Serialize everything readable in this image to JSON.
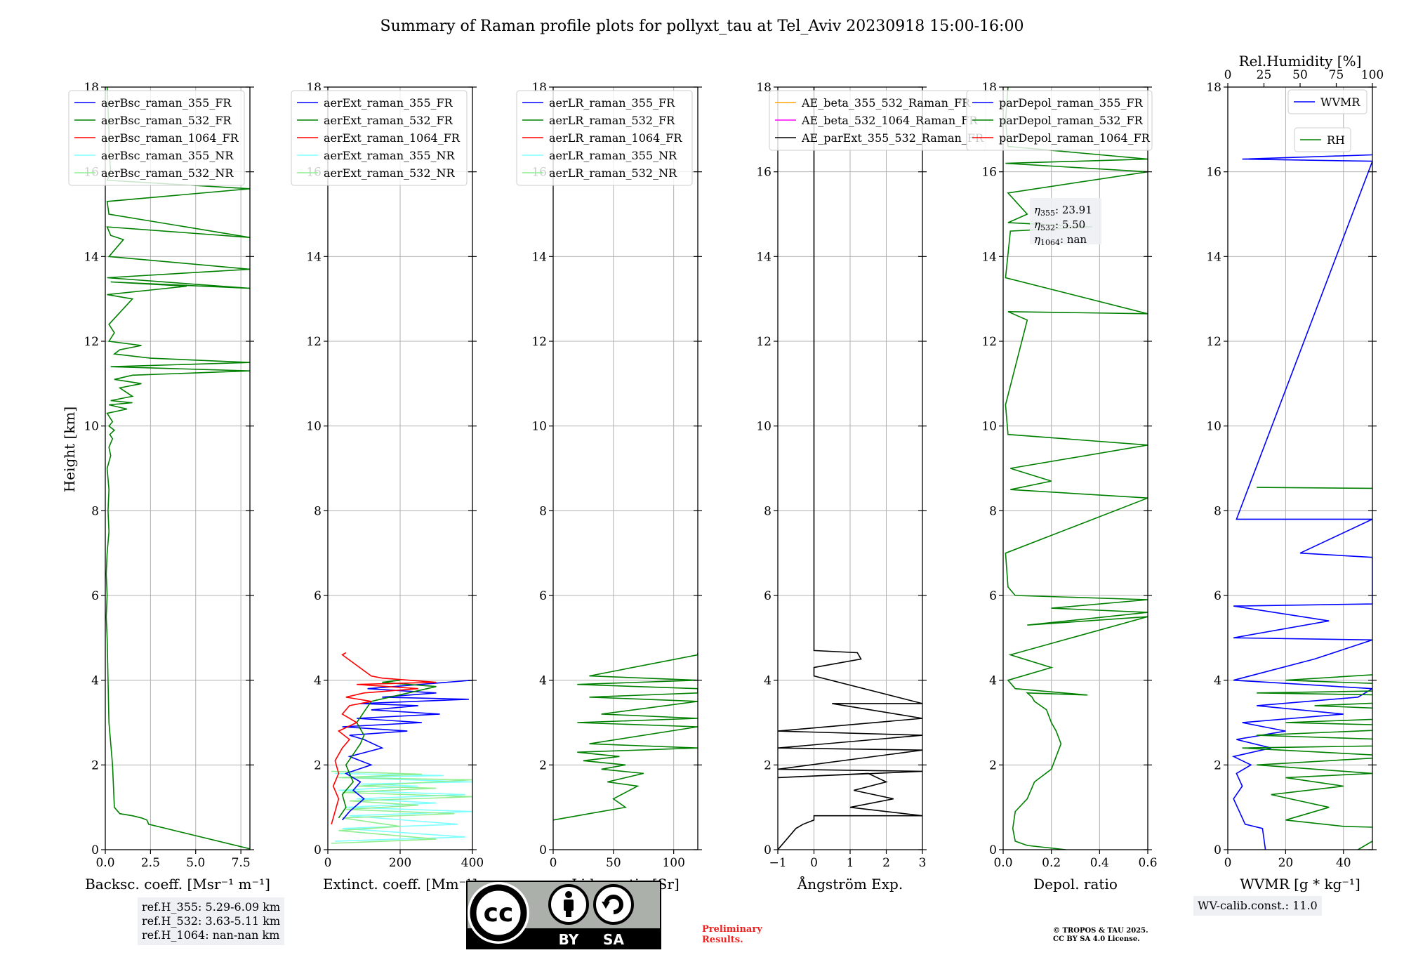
{
  "figure_title": "Summary of Raman profile plots for pollyxt_tau at Tel_Aviv 20230918 15:00-16:00",
  "shared_ylabel": "Height [km]",
  "ylim": [
    0,
    18
  ],
  "yticks": [
    0,
    2,
    4,
    6,
    8,
    10,
    12,
    14,
    16,
    18
  ],
  "colors": {
    "blue": "#0000ff",
    "green": "#008000",
    "red": "#ff0000",
    "cyan": "#80ffff",
    "lightgreen": "#90ee90",
    "orange": "#ffa500",
    "magenta": "#ff00ff",
    "black": "#000000",
    "grid": "#b0b0b0",
    "prelim": "#ee2222",
    "box": "#eef0f3"
  },
  "chart_data": [
    {
      "type": "line",
      "panel": "backscatter",
      "xlabel": "Backsc. coeff. [Msr⁻¹ m⁻¹]",
      "xlim": [
        0,
        8
      ],
      "xticks": [
        0,
        2.5,
        5,
        7.5
      ],
      "xtick_labels": [
        "0.0",
        "2.5",
        "5.0",
        "7.5"
      ],
      "legend": [
        {
          "name": "aerBsc_raman_355_FR",
          "color": "blue"
        },
        {
          "name": "aerBsc_raman_532_FR",
          "color": "green"
        },
        {
          "name": "aerBsc_raman_1064_FR",
          "color": "red"
        },
        {
          "name": "aerBsc_raman_355_NR",
          "color": "cyan"
        },
        {
          "name": "aerBsc_raman_532_NR",
          "color": "lightgreen"
        }
      ],
      "legend_loc": "upper-left",
      "series": [
        {
          "name": "aerBsc_raman_532_FR",
          "color": "green",
          "x": [
            8,
            2.4,
            2.3,
            2.0,
            1.5,
            0.8,
            0.5,
            0.45,
            0.4,
            0.2,
            0.15,
            0.1,
            0.05,
            0.1,
            0.05,
            0.1,
            0.2,
            0.15,
            0.2,
            0.1,
            0.3,
            0.2,
            0.4,
            0.25,
            0.5,
            0.2,
            0.4,
            0.1,
            1.2,
            0.2,
            1.5,
            0.3,
            1.5,
            0.8,
            2.0,
            0.5,
            1.5,
            8.0,
            0.3,
            8.0,
            2.5,
            0.5,
            0.8,
            2.0,
            0.2,
            0.5,
            0.2,
            1.5,
            0.1,
            4.5,
            0.3,
            8.0,
            0.1,
            8.0,
            0.2,
            1.0,
            0.3,
            0.1,
            8.0,
            0.2,
            0.1,
            8.0,
            0.1,
            0.3,
            0.2,
            0.2,
            0.1
          ],
          "y": [
            0.02,
            0.6,
            0.7,
            0.75,
            0.8,
            0.85,
            1.0,
            1.5,
            2.0,
            3.0,
            4.0,
            5.0,
            5.5,
            6.0,
            6.5,
            7.0,
            7.5,
            8.0,
            8.5,
            9.0,
            9.3,
            9.5,
            9.7,
            9.8,
            9.9,
            10.0,
            10.1,
            10.3,
            10.4,
            10.5,
            10.55,
            10.6,
            10.7,
            10.9,
            11.0,
            11.1,
            11.2,
            11.3,
            11.4,
            11.5,
            11.6,
            11.7,
            11.8,
            11.9,
            12.0,
            12.2,
            12.4,
            13.0,
            13.1,
            13.3,
            13.4,
            13.25,
            13.5,
            13.7,
            14.0,
            14.4,
            14.5,
            14.7,
            14.45,
            15.0,
            15.3,
            15.6,
            15.8,
            16.0,
            16.5,
            17.0,
            18.0
          ]
        }
      ]
    },
    {
      "type": "line",
      "panel": "extinction",
      "xlabel": "Extinct. coeff. [Mm⁻¹]",
      "xlim": [
        0,
        400
      ],
      "xticks": [
        0,
        200,
        400
      ],
      "xtick_labels": [
        "0",
        "200",
        "400"
      ],
      "legend": [
        {
          "name": "aerExt_raman_355_FR",
          "color": "blue"
        },
        {
          "name": "aerExt_raman_532_FR",
          "color": "green"
        },
        {
          "name": "aerExt_raman_1064_FR",
          "color": "red"
        },
        {
          "name": "aerExt_raman_355_NR",
          "color": "cyan"
        },
        {
          "name": "aerExt_raman_532_NR",
          "color": "lightgreen"
        }
      ],
      "legend_loc": "upper-left",
      "series": [
        {
          "name": "aerExt_raman_355_NR",
          "color": "cyan",
          "x": [
            20,
            380,
            40,
            360,
            60,
            400,
            50,
            300,
            80,
            380,
            30,
            250,
            90,
            400,
            40,
            320,
            20
          ],
          "y": [
            0.2,
            0.3,
            0.5,
            0.6,
            0.8,
            0.9,
            1.0,
            1.1,
            1.2,
            1.3,
            1.4,
            1.5,
            1.55,
            1.6,
            1.7,
            1.75,
            1.8
          ]
        },
        {
          "name": "aerExt_raman_532_NR",
          "color": "lightgreen",
          "x": [
            10,
            300,
            30,
            200,
            40,
            350,
            50,
            250,
            60,
            400,
            40,
            300,
            80,
            400,
            30,
            260,
            10
          ],
          "y": [
            0.15,
            0.25,
            0.45,
            0.55,
            0.75,
            0.85,
            0.95,
            1.05,
            1.15,
            1.25,
            1.35,
            1.45,
            1.5,
            1.65,
            1.7,
            1.78,
            1.85
          ]
        },
        {
          "name": "aerExt_raman_355_FR",
          "color": "blue",
          "x": [
            40,
            60,
            100,
            70,
            90,
            50,
            120,
            60,
            150,
            100,
            60,
            220,
            40,
            260,
            80,
            310,
            120,
            250,
            90,
            390,
            150,
            300,
            110,
            400
          ],
          "y": [
            0.7,
            0.9,
            1.2,
            1.4,
            1.6,
            1.8,
            2.0,
            2.2,
            2.4,
            2.6,
            2.7,
            2.8,
            2.9,
            3.0,
            3.1,
            3.2,
            3.3,
            3.4,
            3.45,
            3.55,
            3.6,
            3.7,
            3.8,
            4.0
          ]
        },
        {
          "name": "aerExt_raman_532_FR",
          "color": "green",
          "x": [
            30,
            50,
            40,
            70,
            50,
            90,
            100,
            80,
            120,
            300,
            150,
            200
          ],
          "y": [
            0.75,
            1.0,
            1.3,
            1.6,
            2.0,
            2.5,
            2.7,
            3.0,
            3.5,
            3.85,
            3.95,
            4.0
          ]
        },
        {
          "name": "aerExt_raman_1064_FR",
          "color": "red",
          "x": [
            10,
            20,
            30,
            15,
            30,
            20,
            40,
            60,
            30,
            80,
            40,
            60,
            120,
            50,
            100,
            250,
            80,
            300,
            150,
            120,
            40,
            50
          ],
          "y": [
            0.6,
            0.9,
            1.2,
            1.5,
            1.8,
            2.1,
            2.4,
            2.6,
            2.8,
            3.0,
            3.2,
            3.4,
            3.5,
            3.6,
            3.7,
            3.8,
            3.9,
            3.95,
            4.05,
            4.1,
            4.6,
            4.65
          ]
        }
      ]
    },
    {
      "type": "line",
      "panel": "lidar_ratio",
      "xlabel": "Lidar ratio [Sr]",
      "xlim": [
        0,
        120
      ],
      "xticks": [
        0,
        50,
        100
      ],
      "xtick_labels": [
        "0",
        "50",
        "100"
      ],
      "legend": [
        {
          "name": "aerLR_raman_355_FR",
          "color": "blue"
        },
        {
          "name": "aerLR_raman_532_FR",
          "color": "green"
        },
        {
          "name": "aerLR_raman_1064_FR",
          "color": "red"
        },
        {
          "name": "aerLR_raman_355_NR",
          "color": "cyan"
        },
        {
          "name": "aerLR_raman_532_NR",
          "color": "lightgreen"
        }
      ],
      "legend_loc": "upper-left",
      "series": [
        {
          "name": "aerLR_raman_532_FR",
          "color": "green",
          "x": [
            0,
            30,
            60,
            50,
            70,
            45,
            75,
            40,
            60,
            25,
            55,
            20,
            120,
            30,
            120,
            20,
            120,
            40,
            120,
            30,
            120,
            120,
            20,
            120,
            30,
            120,
            120
          ],
          "y": [
            0.7,
            0.85,
            1.0,
            1.2,
            1.5,
            1.6,
            1.8,
            1.9,
            2.0,
            2.1,
            2.2,
            2.3,
            2.4,
            2.5,
            2.9,
            3.0,
            3.1,
            3.2,
            3.5,
            3.6,
            3.7,
            3.8,
            3.9,
            4.0,
            4.1,
            4.6,
            4.65
          ]
        }
      ]
    },
    {
      "type": "line",
      "panel": "angstrom",
      "xlabel": "Ångström Exp.",
      "xlim": [
        -1,
        3
      ],
      "xticks": [
        -1,
        0,
        1,
        2,
        3
      ],
      "xtick_labels": [
        "−1",
        "0",
        "1",
        "2",
        "3"
      ],
      "legend": [
        {
          "name": "AE_beta_355_532_Raman_FR",
          "color": "orange"
        },
        {
          "name": "AE_beta_532_1064_Raman_FR",
          "color": "magenta"
        },
        {
          "name": "AE_parExt_355_532_Raman_FR",
          "color": "black"
        }
      ],
      "legend_loc": "upper-left",
      "series": [
        {
          "name": "AE_parExt_355_532_Raman_FR",
          "color": "black",
          "x": [
            -1,
            -0.5,
            -0.3,
            0,
            0,
            3,
            1,
            2.2,
            1.1,
            2.0,
            1.5,
            -1,
            3,
            -1,
            3,
            -1,
            3,
            -1,
            3,
            0.5,
            3,
            0,
            0,
            1.3,
            1.2,
            0,
            0,
            0
          ],
          "y": [
            0,
            0.5,
            0.6,
            0.7,
            0.8,
            0.8,
            1.0,
            1.2,
            1.4,
            1.6,
            1.8,
            1.7,
            1.85,
            1.9,
            2.35,
            2.4,
            2.7,
            2.8,
            3.1,
            3.45,
            3.45,
            4.1,
            4.3,
            4.5,
            4.65,
            4.7,
            4.75,
            18
          ]
        }
      ]
    },
    {
      "type": "line",
      "panel": "depolarization",
      "xlabel": "Depol. ratio",
      "xlim": [
        0,
        0.6
      ],
      "xticks": [
        0,
        0.2,
        0.4,
        0.6
      ],
      "xtick_labels": [
        "0.0",
        "0.2",
        "0.4",
        "0.6"
      ],
      "legend": [
        {
          "name": "parDepol_raman_355_FR",
          "color": "blue"
        },
        {
          "name": "parDepol_raman_532_FR",
          "color": "green"
        },
        {
          "name": "parDepol_raman_1064_FR",
          "color": "red"
        }
      ],
      "legend_loc": "upper-left",
      "annotation": [
        {
          "label_base": "η",
          "sub": "355",
          "value": ": 23.91"
        },
        {
          "label_base": "η",
          "sub": "532",
          "value": ": 5.50"
        },
        {
          "label_base": "η",
          "sub": "1064",
          "value": ": nan"
        }
      ],
      "series": [
        {
          "name": "parDepol_raman_532_FR",
          "color": "green",
          "x": [
            0.26,
            0.1,
            0.05,
            0.04,
            0.05,
            0.1,
            0.13,
            0.2,
            0.22,
            0.24,
            0.22,
            0.2,
            0.18,
            0.13,
            0.12,
            0.1,
            0.35,
            0.05,
            0.02,
            0.2,
            0.03,
            0.6,
            0.1,
            0.6,
            0.2,
            0.6,
            0.05,
            0.02,
            0.01,
            0.6,
            0.03,
            0.2,
            0.03,
            0.6,
            0.02,
            0.01,
            0.1,
            0.02,
            0.6,
            0.01,
            0.03,
            0.37,
            0.02,
            0.1,
            0.02,
            0.6,
            0.01,
            0.6,
            0.02,
            0.01,
            0.02
          ],
          "y": [
            0,
            0.1,
            0.2,
            0.5,
            0.9,
            1.2,
            1.6,
            1.9,
            2.2,
            2.5,
            2.8,
            3.0,
            3.3,
            3.5,
            3.6,
            3.7,
            3.65,
            3.8,
            4.0,
            4.3,
            4.6,
            5.5,
            5.3,
            5.6,
            5.7,
            5.9,
            6.0,
            6.2,
            7.0,
            8.3,
            8.5,
            8.7,
            9.0,
            9.55,
            9.8,
            10.5,
            12.5,
            12.7,
            12.65,
            13.5,
            14.6,
            14.7,
            14.8,
            15.0,
            15.5,
            16.0,
            16.2,
            16.3,
            16.6,
            17.2,
            18.0
          ]
        }
      ]
    },
    {
      "type": "line",
      "panel": "water_vapor",
      "xlabel": "WVMR [g * kg⁻¹]",
      "xlim": [
        0,
        50
      ],
      "xticks": [
        0,
        20,
        40
      ],
      "xtick_labels": [
        "0",
        "20",
        "40"
      ],
      "top_axis": {
        "label": "Rel.Humidity [%]",
        "lim": [
          0,
          100
        ],
        "ticks": [
          0,
          25,
          50,
          75,
          100
        ],
        "tick_labels": [
          "0",
          "25",
          "50",
          "75",
          "100"
        ]
      },
      "legend": [
        {
          "name": "WVMR",
          "color": "blue"
        },
        {
          "name": "RH",
          "color": "green"
        }
      ],
      "legend_loc": "upper-right",
      "series": [
        {
          "name": "WVMR",
          "color": "blue",
          "x": [
            13,
            12,
            6,
            4,
            2,
            5,
            3,
            8,
            2,
            15,
            3,
            20,
            5,
            40,
            10,
            45,
            50,
            2,
            30,
            50,
            2,
            35,
            2,
            50,
            50,
            25,
            50,
            3,
            50,
            5,
            50,
            50
          ],
          "y": [
            0,
            0.5,
            0.6,
            0.9,
            1.2,
            1.5,
            1.8,
            2.0,
            2.2,
            2.4,
            2.6,
            2.8,
            3.0,
            3.2,
            3.4,
            3.6,
            3.8,
            4.0,
            4.5,
            4.95,
            5.0,
            5.4,
            5.75,
            5.8,
            6.9,
            7.0,
            7.8,
            7.8,
            16.25,
            16.3,
            16.4,
            16.4
          ]
        },
        {
          "name": "RH",
          "color": "green",
          "x": [
            45,
            50,
            60,
            65,
            40,
            20,
            35,
            15,
            40,
            20,
            50,
            10,
            60,
            5,
            100,
            10,
            80,
            20,
            100,
            30,
            100,
            10,
            100,
            20,
            90,
            100,
            50,
            100,
            10,
            100,
            100
          ],
          "y": [
            0,
            0.2,
            0.4,
            0.5,
            0.55,
            0.7,
            1.0,
            1.3,
            1.5,
            1.7,
            1.8,
            2.0,
            2.2,
            2.4,
            2.5,
            2.7,
            2.9,
            3.0,
            3.2,
            3.4,
            3.6,
            3.7,
            3.8,
            4.0,
            4.3,
            4.9,
            4.95,
            8.5,
            8.55,
            8.5,
            8.5
          ]
        }
      ]
    }
  ],
  "footer": {
    "ref_lines": [
      "ref.H_355: 5.29-6.09 km",
      "ref.H_532: 3.63-5.11 km",
      "ref.H_1064: nan-nan km"
    ],
    "wv_calib": "WV-calib.const.: 11.0",
    "preliminary": [
      "Preliminary",
      "Results."
    ],
    "copyright": [
      "© TROPOS & TAU 2025.",
      "CC BY SA 4.0 License."
    ],
    "cc_logo_text": {
      "cc": "cc",
      "by": "BY",
      "sa": "SA"
    }
  }
}
